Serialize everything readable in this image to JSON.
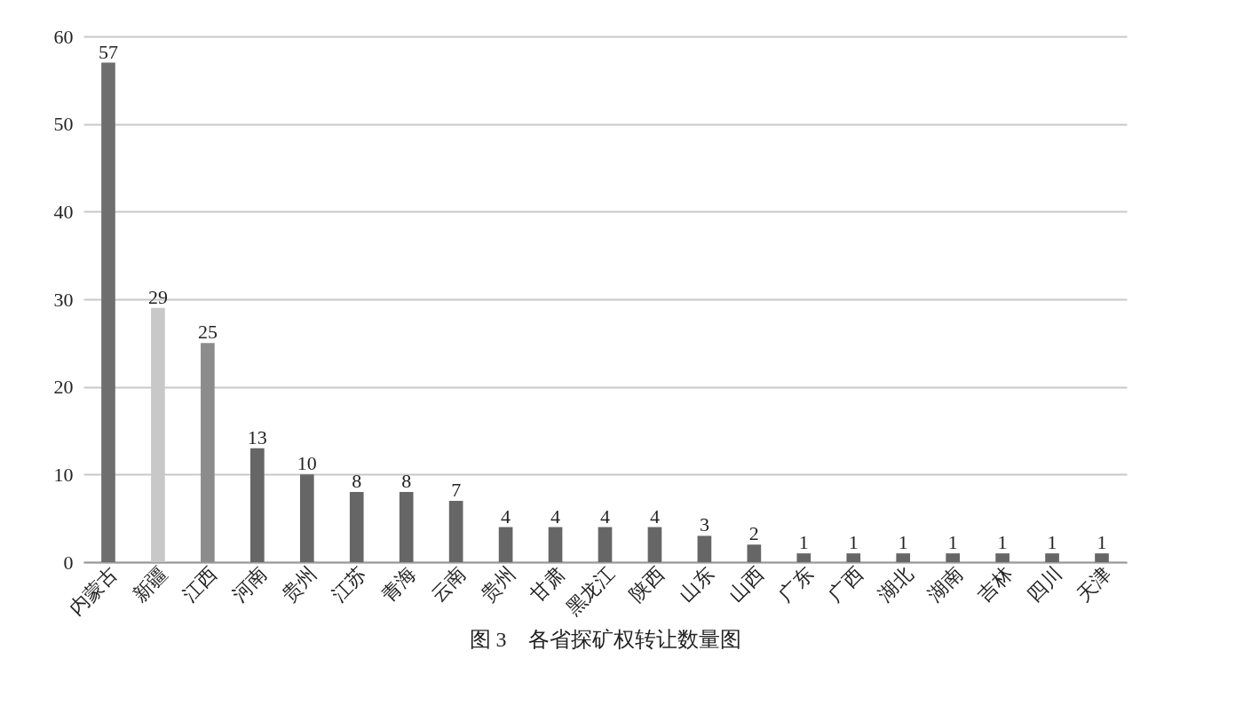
{
  "chart_data": {
    "type": "bar",
    "title": "图 3　各省探矿权转让数量图",
    "categories": [
      "内蒙古",
      "新疆",
      "江西",
      "河南",
      "贵州",
      "江苏",
      "青海",
      "云南",
      "贵州",
      "甘肃",
      "黑龙江",
      "陕西",
      "山东",
      "山西",
      "广东",
      "广西",
      "湖北",
      "湖南",
      "吉林",
      "四川",
      "天津"
    ],
    "values": [
      57,
      29,
      25,
      13,
      10,
      8,
      8,
      7,
      4,
      4,
      4,
      4,
      3,
      2,
      1,
      1,
      1,
      1,
      1,
      1,
      1
    ],
    "colors": [
      "#6e6e6e",
      "#c8c8c8",
      "#8c8c8c",
      "#666666",
      "#666666",
      "#666666",
      "#666666",
      "#666666",
      "#666666",
      "#666666",
      "#666666",
      "#666666",
      "#666666",
      "#666666",
      "#666666",
      "#666666",
      "#666666",
      "#666666",
      "#666666",
      "#666666",
      "#666666"
    ],
    "ylim": [
      0,
      60
    ],
    "yticks": [
      0,
      10,
      20,
      30,
      40,
      50,
      60
    ],
    "grid": "y",
    "data_labels": true
  }
}
